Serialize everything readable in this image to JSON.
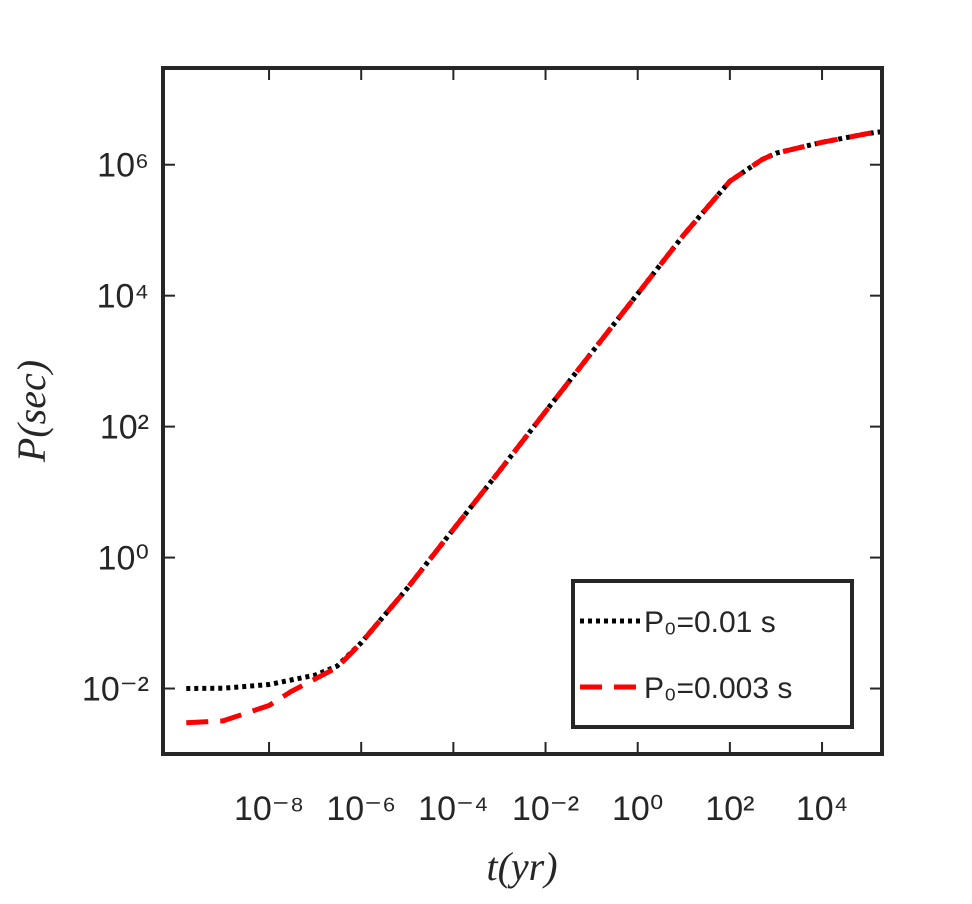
{
  "chart_data": {
    "type": "line",
    "xlabel": "t(yr)",
    "ylabel": "P(sec)",
    "xlog": true,
    "ylog": true,
    "grid": false,
    "legend": "lower right",
    "xlim": [
      5e-11,
      200000.0
    ],
    "ylim": [
      0.001,
      30000000.0
    ],
    "xticks": [
      {
        "value": 1e-08,
        "label": "10⁻⁸"
      },
      {
        "value": 1e-06,
        "label": "10⁻⁶"
      },
      {
        "value": 0.0001,
        "label": "10⁻⁴"
      },
      {
        "value": 0.01,
        "label": "10⁻²"
      },
      {
        "value": 1,
        "label": "10⁰"
      },
      {
        "value": 100,
        "label": "10²"
      },
      {
        "value": 10000,
        "label": "10⁴"
      }
    ],
    "yticks": [
      {
        "value": 0.01,
        "label": "10⁻²"
      },
      {
        "value": 1,
        "label": "10⁰"
      },
      {
        "value": 100,
        "label": "10²"
      },
      {
        "value": 10000,
        "label": "10⁴"
      },
      {
        "value": 1000000,
        "label": "10⁶"
      }
    ],
    "x": [
      1.6e-10,
      1e-09,
      1e-08,
      3e-08,
      1e-07,
      3e-07,
      1e-06,
      1e-05,
      0.0001,
      0.001,
      0.01,
      0.1,
      1,
      10,
      100,
      500,
      1000,
      10000,
      100000,
      200000
    ],
    "series": [
      {
        "name": "P₀=0.01 s",
        "color": "#000000",
        "dash": "dotted",
        "values": [
          0.01,
          0.0101,
          0.0115,
          0.0135,
          0.016,
          0.022,
          0.05,
          0.34,
          2.7,
          21,
          170,
          1350,
          10700,
          85000,
          560000,
          1200000,
          1500000,
          2200000,
          3000000,
          3200000
        ]
      },
      {
        "name": "P₀=0.003 s",
        "color": "#ff0000",
        "dash": "dashed",
        "values": [
          0.003,
          0.0032,
          0.0055,
          0.009,
          0.014,
          0.021,
          0.05,
          0.34,
          2.7,
          21,
          170,
          1350,
          10700,
          85000,
          560000,
          1200000,
          1500000,
          2200000,
          3000000,
          3200000
        ]
      }
    ]
  }
}
